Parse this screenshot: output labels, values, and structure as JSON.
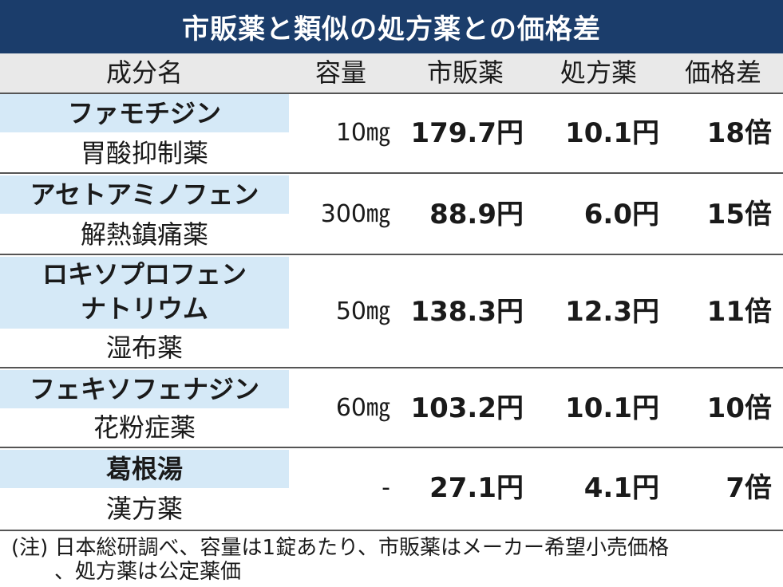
{
  "title": "市販薬と類似の処方薬との価格差",
  "headers": {
    "ingredient": "成分名",
    "capacity": "容量",
    "otc": "市販薬",
    "prescription": "処方薬",
    "difference": "価格差"
  },
  "rows": [
    {
      "name": "ファモチジン",
      "category": "胃酸抑制薬",
      "capacity": "10㎎",
      "otc": "179.7円",
      "prescription": "10.1円",
      "difference": "18倍"
    },
    {
      "name": "アセトアミノフェン",
      "category": "解熱鎮痛薬",
      "capacity": "300㎎",
      "otc": "88.9円",
      "prescription": "6.0円",
      "difference": "15倍"
    },
    {
      "name_line1": "ロキソプロフェン",
      "name_line2": "ナトリウム",
      "category": "湿布薬",
      "capacity": "50㎎",
      "otc": "138.3円",
      "prescription": "12.3円",
      "difference": "11倍"
    },
    {
      "name": "フェキソフェナジン",
      "category": "花粉症薬",
      "capacity": "60㎎",
      "otc": "103.2円",
      "prescription": "10.1円",
      "difference": "10倍"
    },
    {
      "name": "葛根湯",
      "category": "漢方薬",
      "capacity": "-",
      "otc": "27.1円",
      "prescription": "4.1円",
      "difference": "7倍"
    }
  ],
  "note": {
    "line1": "(注) 日本総研調べ、容量は1錠あたり、市販薬はメーカー希望小売価格",
    "line2": "、処方薬は公定薬価"
  }
}
